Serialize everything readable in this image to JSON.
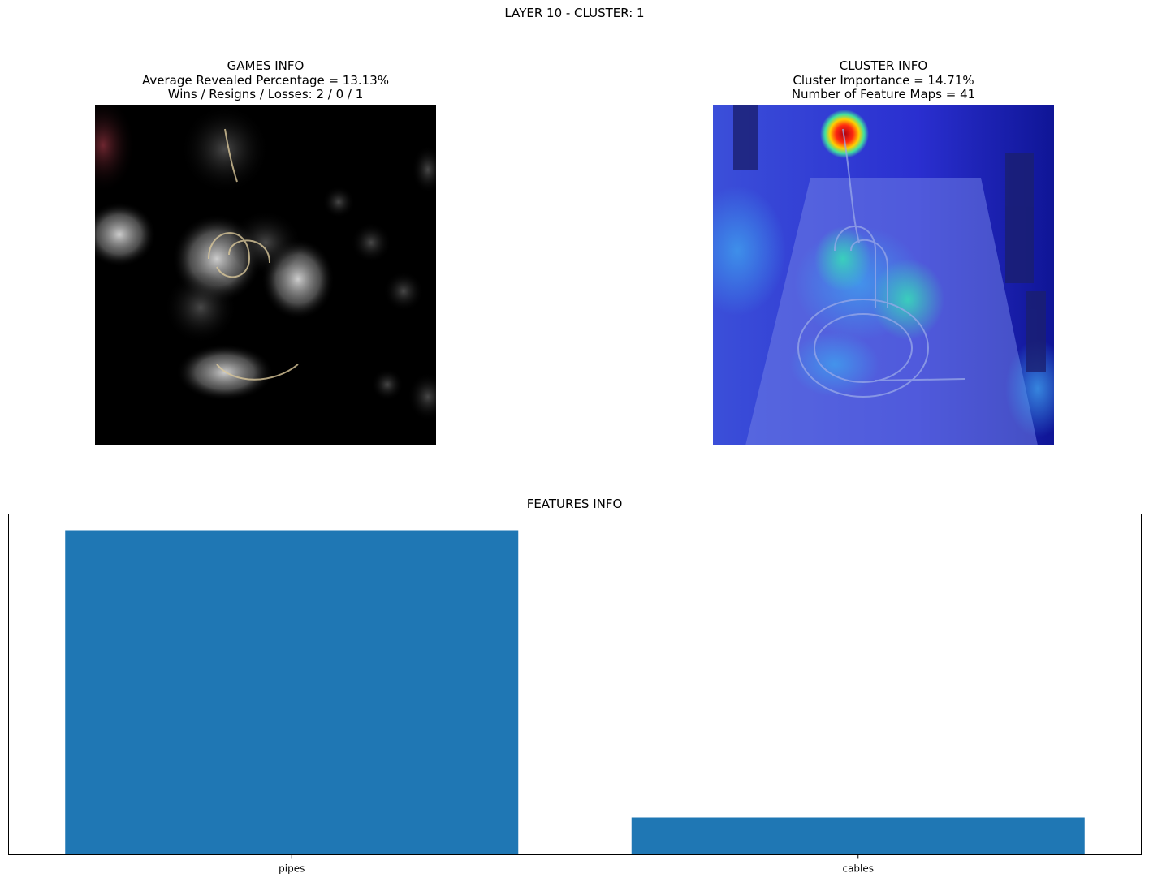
{
  "figure": {
    "title": "LAYER 10 - CLUSTER: 1"
  },
  "games_panel": {
    "title": "GAMES INFO",
    "line1": "Average Revealed Percentage = 13.13%",
    "line2": "Wins / Resigns / Losses: 2 / 0 / 1"
  },
  "cluster_panel": {
    "title": "CLUSTER INFO",
    "line1": "Cluster Importance = 14.71%",
    "line2": "Number of Feature Maps = 41"
  },
  "chart_data": {
    "type": "bar",
    "title": "FEATURES INFO",
    "categories": [
      "pipes",
      "cables"
    ],
    "values": [
      1.0,
      0.115
    ],
    "ylim": [
      0,
      1.05
    ],
    "xlabel": "",
    "ylabel": "",
    "grid": false,
    "bar_color": "#1f77b4"
  }
}
